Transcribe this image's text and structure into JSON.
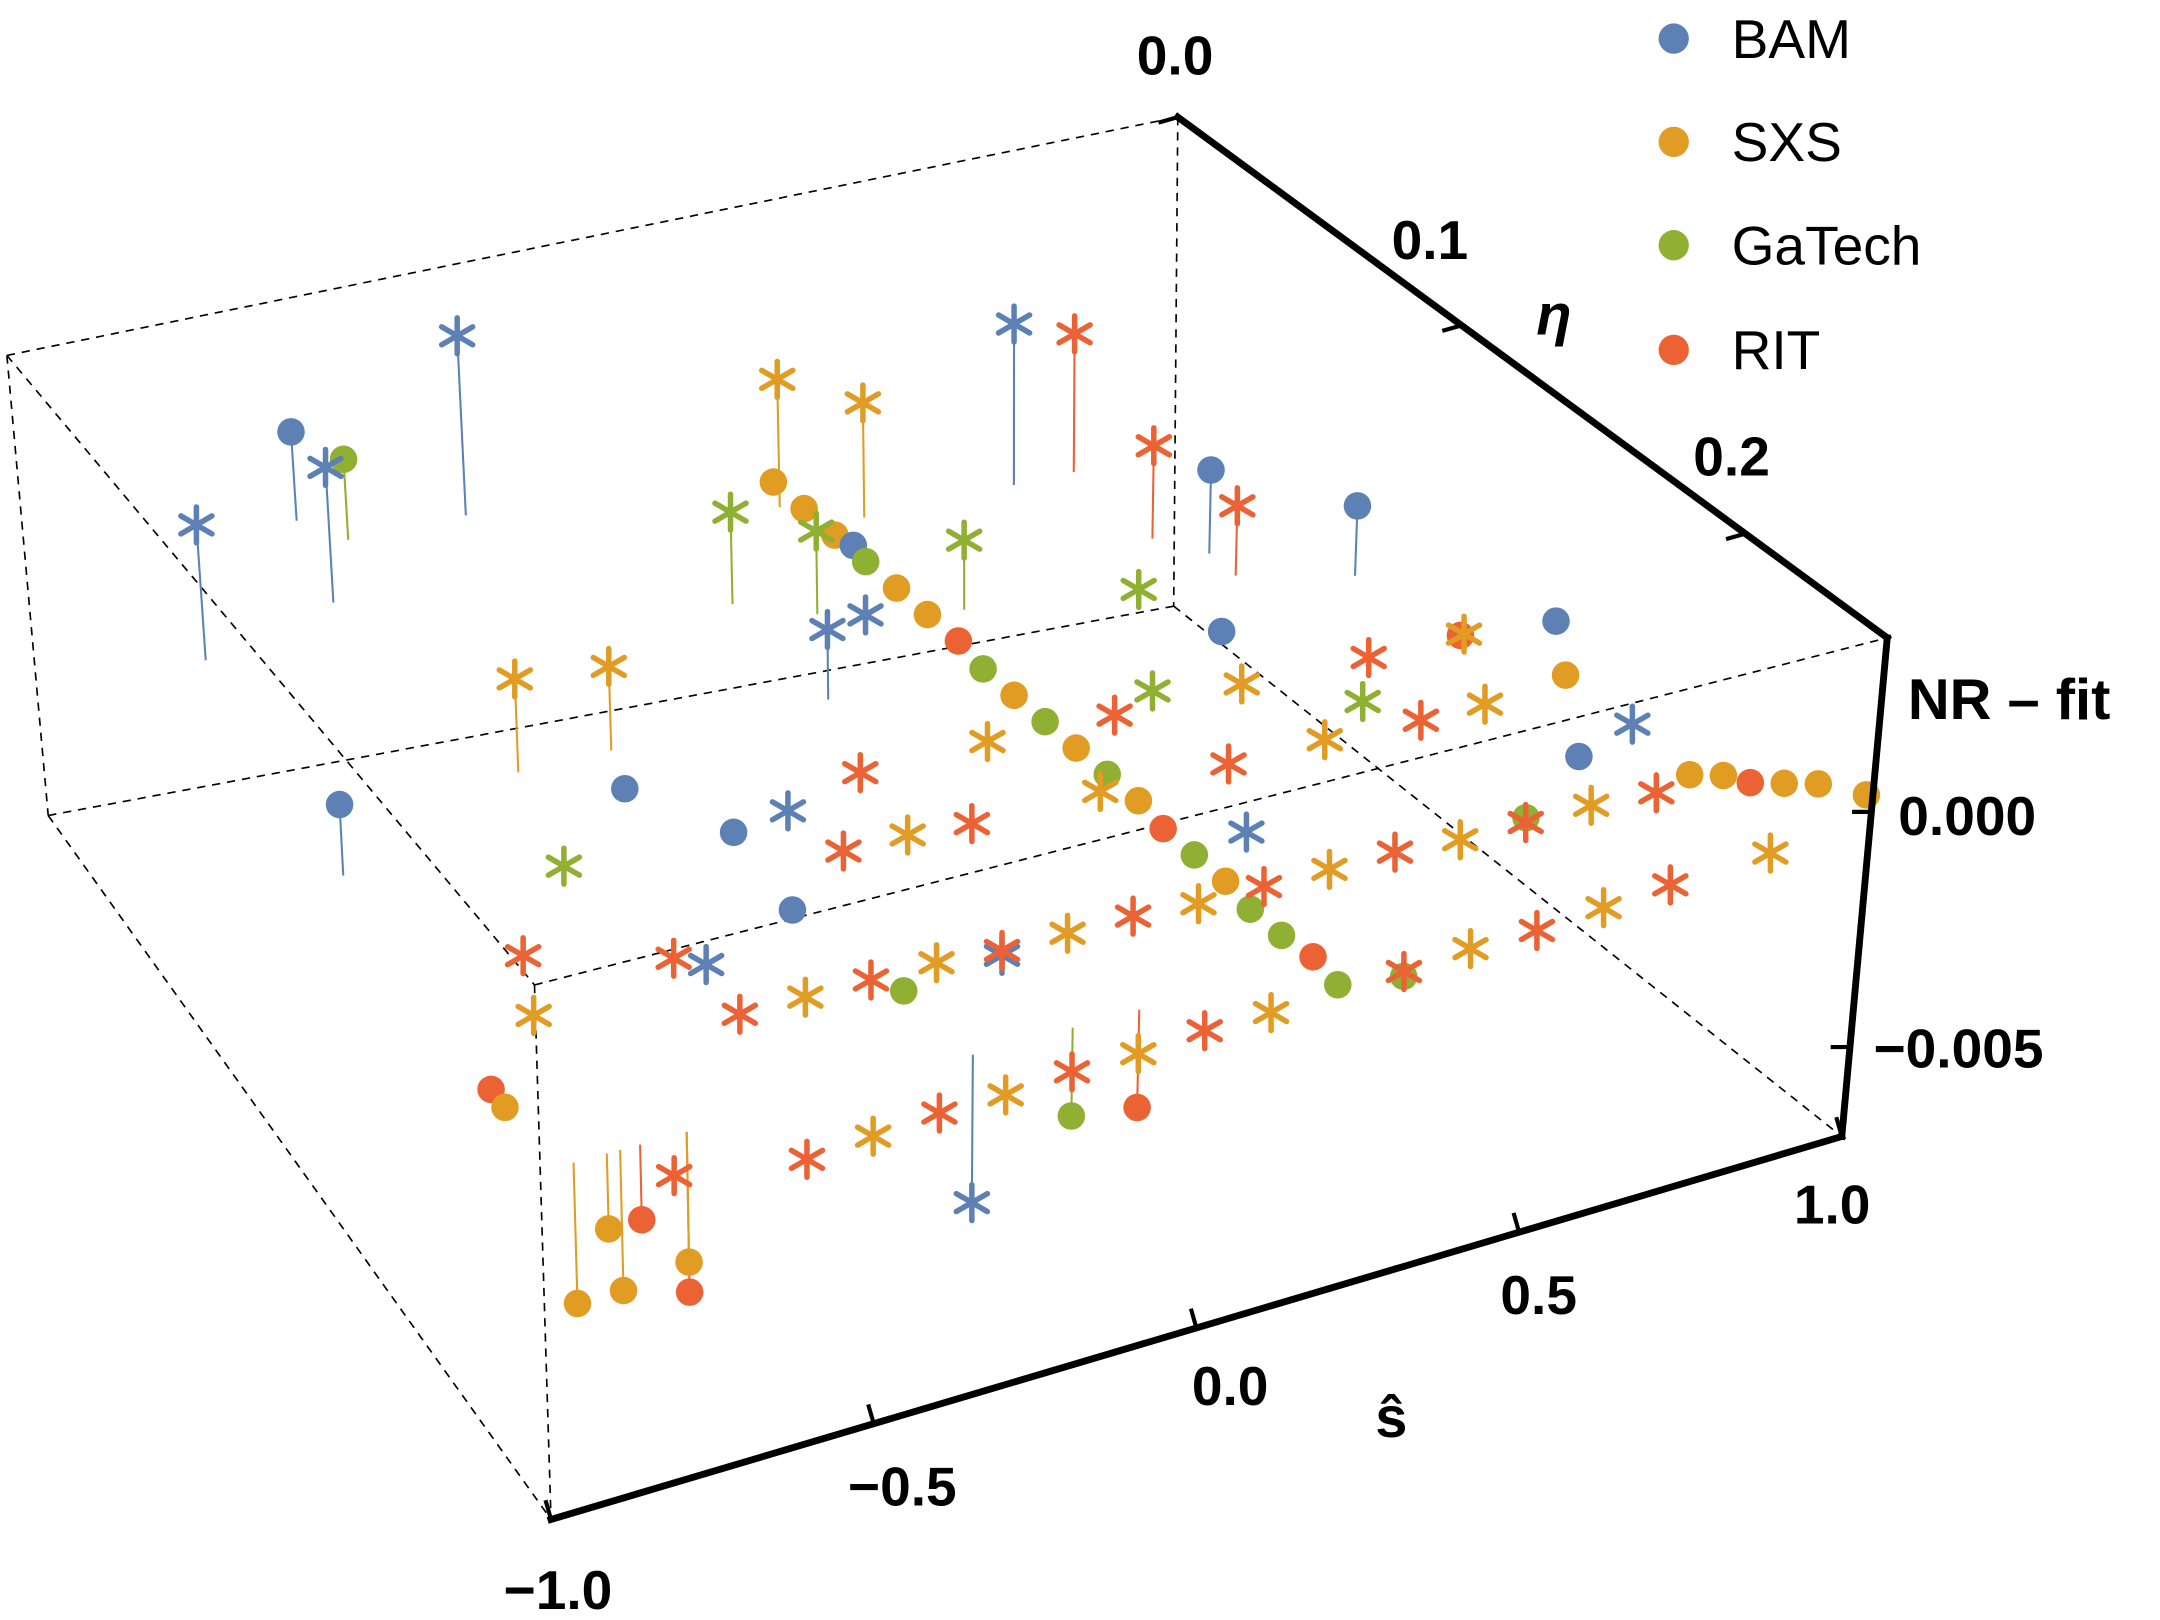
{
  "chart_data": {
    "type": "scatter",
    "subtype": "3d-scatter",
    "title": "",
    "legend_position": "top-right",
    "legend": [
      {
        "name": "BAM",
        "color": "#5E81B5"
      },
      {
        "name": "SXS",
        "color": "#E19C24"
      },
      {
        "name": "GaTech",
        "color": "#8FB032"
      },
      {
        "name": "RIT",
        "color": "#EB6235"
      }
    ],
    "axes": {
      "s": {
        "label": "ŝ",
        "range": [
          -1.0,
          1.0
        ],
        "ticks": [
          -1.0,
          -0.5,
          0.0,
          0.5,
          1.0
        ],
        "tick_labels": [
          "-1.0",
          "-0.5",
          "0.0",
          "0.5",
          "1.0"
        ]
      },
      "eta": {
        "label": "η",
        "range": [
          0.0,
          0.25
        ],
        "ticks": [
          0.0,
          0.1,
          0.2
        ],
        "tick_labels": [
          "0.0",
          "0.1",
          "0.2"
        ]
      },
      "nr": {
        "label": "NR - fit",
        "range": [
          -0.0069,
          0.0037
        ],
        "ticks": [
          0.0,
          -0.005
        ],
        "tick_labels": [
          "0.000",
          "-0.005"
        ]
      }
    },
    "point_fields": [
      "dataset",
      "marker",
      "s",
      "eta",
      "nr_minus_fit"
    ],
    "points": [
      [
        "BAM",
        "circle",
        -0.6,
        0.02,
        0.002
      ],
      [
        "GaTech",
        "circle",
        -0.55,
        0.03,
        0.0018
      ],
      [
        "SXS",
        "circle",
        0.05,
        0.06,
        0.0012
      ],
      [
        "SXS",
        "circle",
        0.06,
        0.07,
        0.0011
      ],
      [
        "SXS",
        "circle",
        0.07,
        0.08,
        0.001
      ],
      [
        "BAM",
        "circle",
        0.08,
        0.085,
        0.001
      ],
      [
        "GaTech",
        "circle",
        0.08,
        0.09,
        0.0009
      ],
      [
        "SXS",
        "circle",
        0.09,
        0.1,
        0.0008
      ],
      [
        "SXS",
        "circle",
        0.1,
        0.11,
        0.0007
      ],
      [
        "RIT",
        "circle",
        0.11,
        0.12,
        0.0006
      ],
      [
        "GaTech",
        "circle",
        0.11,
        0.13,
        0.0005
      ],
      [
        "SXS",
        "circle",
        0.12,
        0.14,
        0.0004
      ],
      [
        "GaTech",
        "circle",
        0.13,
        0.15,
        0.0003
      ],
      [
        "SXS",
        "circle",
        0.14,
        0.16,
        0.0002
      ],
      [
        "GaTech",
        "circle",
        0.15,
        0.17,
        0.0001
      ],
      [
        "SXS",
        "circle",
        0.16,
        0.18,
        0.0
      ],
      [
        "RIT",
        "circle",
        0.16,
        0.19,
        -0.0001
      ],
      [
        "GaTech",
        "circle",
        0.17,
        0.2,
        -0.0002
      ],
      [
        "SXS",
        "circle",
        0.18,
        0.21,
        -0.0003
      ],
      [
        "GaTech",
        "circle",
        0.18,
        0.22,
        -0.0004
      ],
      [
        "GaTech",
        "circle",
        0.19,
        0.23,
        -0.0005
      ],
      [
        "RIT",
        "circle",
        0.2,
        0.24,
        -0.0005
      ],
      [
        "GaTech",
        "circle",
        0.2,
        0.25,
        -0.0006
      ],
      [
        "SXS",
        "circle",
        0.85,
        0.22,
        0.0
      ],
      [
        "SXS",
        "circle",
        0.88,
        0.225,
        0.0001
      ],
      [
        "RIT",
        "circle",
        0.9,
        0.23,
        0.0001
      ],
      [
        "SXS",
        "circle",
        0.93,
        0.235,
        0.0002
      ],
      [
        "SXS",
        "circle",
        0.96,
        0.24,
        0.0003
      ],
      [
        "SXS",
        "circle",
        0.99,
        0.25,
        0.0004
      ],
      [
        "SXS",
        "circle",
        -0.9,
        0.25,
        -0.0015
      ],
      [
        "RIT",
        "circle",
        -0.85,
        0.25,
        -0.0015
      ],
      [
        "SXS",
        "circle",
        -0.95,
        0.25,
        -0.0028
      ],
      [
        "SXS",
        "circle",
        -0.88,
        0.25,
        -0.0028
      ],
      [
        "RIT",
        "circle",
        -0.78,
        0.25,
        -0.0032
      ],
      [
        "SXS",
        "circle",
        -0.78,
        0.25,
        -0.0026
      ],
      [
        "BAM",
        "circle",
        -0.95,
        0.14,
        0.0015
      ],
      [
        "RIT",
        "circle",
        -0.98,
        0.22,
        0.0
      ],
      [
        "SXS",
        "circle",
        -0.99,
        0.23,
        0.0002
      ],
      [
        "BAM",
        "circle",
        -0.5,
        0.14,
        0.0004
      ],
      [
        "BAM",
        "circle",
        -0.4,
        0.16,
        0.0002
      ],
      [
        "BAM",
        "circle",
        -0.45,
        0.2,
        0.0008
      ],
      [
        "BAM",
        "circle",
        0.6,
        0.1,
        0.0018
      ],
      [
        "BAM",
        "circle",
        0.75,
        0.12,
        0.0015
      ],
      [
        "BAM",
        "circle",
        0.85,
        0.17,
        0.001
      ],
      [
        "BAM",
        "circle",
        0.45,
        0.14,
        0.0007
      ],
      [
        "BAM",
        "circle",
        0.72,
        0.21,
        0.0004
      ],
      [
        "GaTech",
        "circle",
        -0.35,
        0.22,
        -0.0002
      ],
      [
        "GaTech",
        "circle",
        0.3,
        0.25,
        -0.0008
      ],
      [
        "GaTech",
        "circle",
        0.6,
        0.22,
        0.0
      ],
      [
        "RIT",
        "circle",
        0.7,
        0.17,
        0.0012
      ],
      [
        "SXS",
        "circle",
        0.78,
        0.19,
        0.001
      ],
      [
        "GaTech",
        "circle",
        -0.2,
        0.25,
        -0.0018
      ],
      [
        "RIT",
        "circle",
        -0.1,
        0.25,
        -0.002
      ],
      [
        "BAM",
        "star",
        -0.9,
        0.06,
        0.003
      ],
      [
        "BAM",
        "star",
        -0.65,
        0.05,
        0.003
      ],
      [
        "BAM",
        "star",
        -0.35,
        0.03,
        0.004
      ],
      [
        "BAM",
        "star",
        0.45,
        0.06,
        0.0035
      ],
      [
        "BAM",
        "star",
        -0.1,
        0.12,
        0.0015
      ],
      [
        "BAM",
        "star",
        0.0,
        0.11,
        0.001
      ],
      [
        "BAM",
        "star",
        -0.35,
        0.17,
        0.001
      ],
      [
        "BAM",
        "star",
        -0.55,
        0.19,
        -0.0005
      ],
      [
        "BAM",
        "star",
        -0.2,
        0.22,
        0.0
      ],
      [
        "BAM",
        "star",
        -0.35,
        0.25,
        -0.003
      ],
      [
        "BAM",
        "star",
        0.8,
        0.21,
        0.0008
      ],
      [
        "BAM",
        "star",
        0.25,
        0.2,
        0.0
      ],
      [
        "RIT",
        "star",
        0.55,
        0.06,
        0.003
      ],
      [
        "RIT",
        "star",
        0.55,
        0.09,
        0.002
      ],
      [
        "RIT",
        "star",
        0.6,
        0.11,
        0.0015
      ],
      [
        "RIT",
        "star",
        -0.8,
        0.18,
        0.0
      ],
      [
        "RIT",
        "star",
        -0.6,
        0.19,
        -0.0002
      ],
      [
        "RIT",
        "star",
        -0.8,
        0.25,
        -0.0008
      ],
      [
        "SXS",
        "star",
        -0.85,
        0.2,
        0.0
      ],
      [
        "SXS",
        "star",
        -0.6,
        0.12,
        0.002
      ],
      [
        "SXS",
        "star",
        -0.45,
        0.12,
        0.0018
      ],
      [
        "SXS",
        "star",
        0.1,
        0.05,
        0.0028
      ],
      [
        "SXS",
        "star",
        0.2,
        0.06,
        0.0025
      ],
      [
        "GaTech",
        "star",
        -0.1,
        0.08,
        0.002
      ],
      [
        "GaTech",
        "star",
        0.0,
        0.09,
        0.0018
      ],
      [
        "GaTech",
        "star",
        0.2,
        0.1,
        0.0015
      ],
      [
        "GaTech",
        "star",
        0.4,
        0.12,
        0.0008
      ],
      [
        "GaTech",
        "star",
        -0.7,
        0.17,
        0.001
      ],
      [
        "GaTech",
        "star",
        0.3,
        0.15,
        0.0004
      ],
      [
        "GaTech",
        "star",
        0.55,
        0.17,
        0.0003
      ],
      [
        "RIT",
        "star",
        -0.6,
        0.22,
        0.0002
      ],
      [
        "SXS",
        "star",
        -0.5,
        0.22,
        0.0002
      ],
      [
        "RIT",
        "star",
        -0.4,
        0.22,
        0.0002
      ],
      [
        "SXS",
        "star",
        -0.3,
        0.22,
        0.0002
      ],
      [
        "RIT",
        "star",
        -0.2,
        0.22,
        0.0001
      ],
      [
        "SXS",
        "star",
        -0.1,
        0.22,
        0.0001
      ],
      [
        "RIT",
        "star",
        0.0,
        0.22,
        0.0001
      ],
      [
        "SXS",
        "star",
        0.1,
        0.22,
        0.0
      ],
      [
        "RIT",
        "star",
        0.2,
        0.22,
        0.0
      ],
      [
        "SXS",
        "star",
        0.3,
        0.22,
        0.0
      ],
      [
        "RIT",
        "star",
        0.4,
        0.22,
        0.0
      ],
      [
        "SXS",
        "star",
        0.5,
        0.22,
        -0.0001
      ],
      [
        "RIT",
        "star",
        0.6,
        0.22,
        -0.0001
      ],
      [
        "SXS",
        "star",
        0.7,
        0.22,
        -0.0001
      ],
      [
        "RIT",
        "star",
        0.8,
        0.22,
        -0.0002
      ],
      [
        "RIT",
        "star",
        -0.6,
        0.25,
        -0.0012
      ],
      [
        "SXS",
        "star",
        -0.5,
        0.25,
        -0.0011
      ],
      [
        "RIT",
        "star",
        -0.4,
        0.25,
        -0.001
      ],
      [
        "SXS",
        "star",
        -0.3,
        0.25,
        -0.001
      ],
      [
        "RIT",
        "star",
        -0.2,
        0.25,
        -0.0009
      ],
      [
        "SXS",
        "star",
        -0.1,
        0.25,
        -0.0009
      ],
      [
        "RIT",
        "star",
        0.0,
        0.25,
        -0.0008
      ],
      [
        "SXS",
        "star",
        0.1,
        0.25,
        -0.0008
      ],
      [
        "RIT",
        "star",
        0.3,
        0.25,
        -0.0007
      ],
      [
        "SXS",
        "star",
        0.4,
        0.25,
        -0.0006
      ],
      [
        "RIT",
        "star",
        0.5,
        0.25,
        -0.0006
      ],
      [
        "SXS",
        "star",
        0.6,
        0.25,
        -0.0005
      ],
      [
        "RIT",
        "star",
        0.7,
        0.25,
        -0.0004
      ],
      [
        "SXS",
        "star",
        0.85,
        0.25,
        -0.0003
      ],
      [
        "RIT",
        "star",
        -0.3,
        0.18,
        0.0005
      ],
      [
        "SXS",
        "star",
        -0.2,
        0.18,
        0.0005
      ],
      [
        "RIT",
        "star",
        -0.1,
        0.18,
        0.0004
      ],
      [
        "SXS",
        "star",
        0.1,
        0.18,
        0.0004
      ],
      [
        "RIT",
        "star",
        0.3,
        0.18,
        0.0003
      ],
      [
        "SXS",
        "star",
        0.45,
        0.18,
        0.0003
      ],
      [
        "RIT",
        "star",
        0.6,
        0.18,
        0.0002
      ],
      [
        "SXS",
        "star",
        0.7,
        0.18,
        0.0002
      ],
      [
        "RIT",
        "star",
        -0.2,
        0.16,
        0.0008
      ],
      [
        "SXS",
        "star",
        0.0,
        0.16,
        0.0008
      ],
      [
        "RIT",
        "star",
        0.2,
        0.16,
        0.0007
      ],
      [
        "SXS",
        "star",
        0.4,
        0.16,
        0.0007
      ],
      [
        "RIT",
        "star",
        0.6,
        0.16,
        0.0006
      ],
      [
        "SXS",
        "star",
        0.75,
        0.16,
        0.0006
      ]
    ]
  }
}
